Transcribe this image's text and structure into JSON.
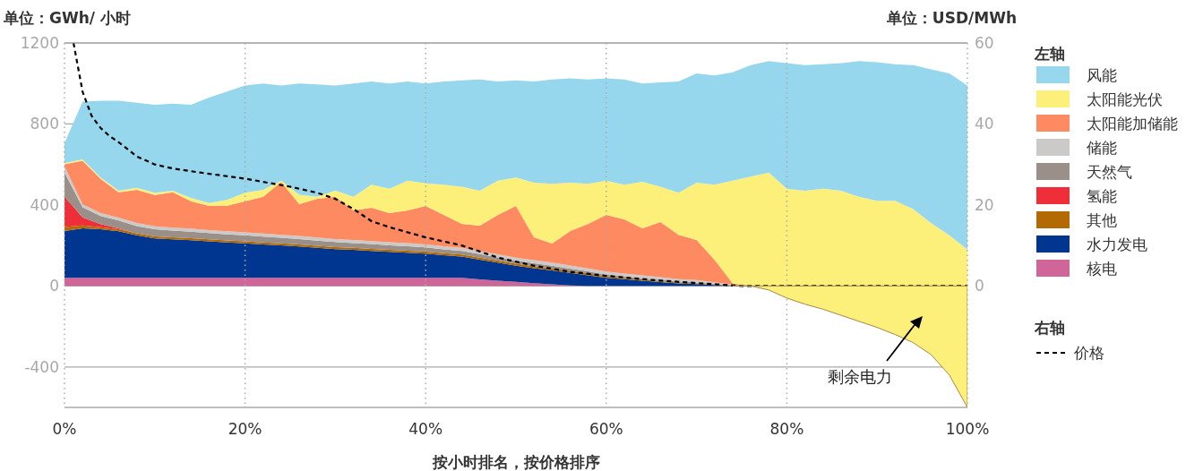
{
  "chart_data": [
    {
      "type": "area",
      "stacked": true,
      "xlabel": "按小时排名，按价格排序",
      "ylabel": "单位：GWh/ 小时",
      "y2label": "单位：USD/MWh",
      "legend_title": "左轴",
      "legend": "right",
      "grid": true,
      "x": [
        0,
        2,
        4,
        6,
        8,
        10,
        12,
        14,
        16,
        18,
        20,
        22,
        24,
        26,
        28,
        30,
        32,
        34,
        36,
        38,
        40,
        42,
        44,
        46,
        48,
        50,
        52,
        54,
        56,
        58,
        60,
        62,
        64,
        66,
        68,
        70,
        72,
        74,
        76,
        78,
        80,
        82,
        84,
        86,
        88,
        90,
        92,
        94,
        96,
        98,
        100
      ],
      "xlim": [
        0,
        100
      ],
      "xticks": [
        {
          "value": 0,
          "label": "0%"
        },
        {
          "value": 20,
          "label": "20%"
        },
        {
          "value": 40,
          "label": "40%"
        },
        {
          "value": 60,
          "label": "60%"
        },
        {
          "value": 80,
          "label": "80%"
        },
        {
          "value": 100,
          "label": "100%"
        }
      ],
      "ylim": [
        -600,
        1200
      ],
      "yticks": [
        -400,
        0,
        400,
        800,
        1200
      ],
      "y2lim": [
        -30,
        60
      ],
      "y2ticks": [
        0,
        20,
        40,
        60
      ],
      "series": [
        {
          "name": "核电",
          "color": "#cf6599",
          "values": [
            40,
            40,
            40,
            40,
            40,
            40,
            40,
            40,
            40,
            40,
            40,
            40,
            40,
            40,
            40,
            40,
            40,
            40,
            40,
            40,
            40,
            40,
            40,
            32,
            26,
            20,
            14,
            8,
            3,
            0,
            0,
            0,
            0,
            0,
            0,
            0,
            0,
            0,
            0,
            0,
            0,
            0,
            0,
            0,
            0,
            0,
            0,
            0,
            0,
            0,
            0
          ]
        },
        {
          "name": "水力发电",
          "color": "#00368f",
          "values": [
            231,
            244,
            240,
            230,
            210,
            195,
            190,
            186,
            180,
            175,
            170,
            165,
            160,
            155,
            148,
            142,
            138,
            133,
            128,
            124,
            120,
            112,
            105,
            98,
            89,
            80,
            74,
            69,
            62,
            52,
            40,
            33,
            26,
            19,
            13,
            9,
            5,
            2,
            0,
            0,
            0,
            0,
            0,
            0,
            0,
            0,
            0,
            0,
            0,
            0,
            0
          ]
        },
        {
          "name": "其他",
          "color": "#b46a02",
          "values": [
            20,
            15,
            10,
            10,
            10,
            10,
            10,
            10,
            10,
            10,
            10,
            10,
            10,
            10,
            10,
            10,
            10,
            10,
            10,
            10,
            10,
            10,
            10,
            10,
            10,
            10,
            10,
            10,
            10,
            10,
            8,
            7,
            6,
            5,
            4,
            3,
            2,
            1,
            0,
            0,
            0,
            0,
            0,
            0,
            0,
            0,
            0,
            0,
            0,
            0,
            0
          ]
        },
        {
          "name": "氢能",
          "color": "#ee2f3a",
          "values": [
            150,
            40,
            15,
            5,
            0,
            0,
            0,
            0,
            0,
            0,
            0,
            0,
            0,
            0,
            0,
            0,
            0,
            0,
            0,
            0,
            0,
            0,
            0,
            0,
            0,
            0,
            0,
            0,
            0,
            0,
            0,
            0,
            0,
            0,
            0,
            0,
            0,
            0,
            0,
            0,
            0,
            0,
            0,
            0,
            0,
            0,
            0,
            0,
            0,
            0,
            0
          ]
        },
        {
          "name": "天然气",
          "color": "#9b9089",
          "values": [
            120,
            50,
            40,
            38,
            36,
            35,
            33,
            32,
            31,
            30,
            30,
            29,
            28,
            27,
            26,
            25,
            24,
            24,
            23,
            22,
            20,
            19,
            18,
            17,
            16,
            15,
            14,
            13,
            11,
            10,
            8,
            7,
            6,
            6,
            5,
            5,
            3,
            1,
            0,
            0,
            0,
            0,
            0,
            0,
            0,
            0,
            0,
            0,
            0,
            0,
            0
          ]
        },
        {
          "name": "储能",
          "color": "#cccac8",
          "values": [
            30,
            15,
            15,
            15,
            15,
            15,
            15,
            15,
            15,
            15,
            15,
            15,
            15,
            15,
            15,
            15,
            15,
            15,
            15,
            15,
            15,
            15,
            15,
            15,
            15,
            15,
            15,
            15,
            15,
            15,
            15,
            14,
            14,
            13,
            12,
            12,
            8,
            3,
            0,
            0,
            0,
            0,
            0,
            0,
            0,
            0,
            0,
            0,
            0,
            0,
            0
          ]
        },
        {
          "name": "太阳能加储能",
          "color": "#fd8a60",
          "values": [
            10,
            214,
            169,
            124,
            164,
            154,
            174,
            135,
            119,
            125,
            153,
            181,
            260,
            157,
            192,
            208,
            146,
            164,
            144,
            162,
            190,
            155,
            119,
            126,
            195,
            255,
            113,
            94,
            170,
            220,
            280,
            268,
            232,
            273,
            219,
            198,
            111,
            6,
            0,
            0,
            0,
            0,
            0,
            0,
            0,
            0,
            0,
            0,
            0,
            0,
            0
          ]
        },
        {
          "name": "太阳能光伏",
          "color": "#fdf07a",
          "values": [
            5,
            7,
            6,
            8,
            10,
            11,
            8,
            17,
            15,
            30,
            42,
            35,
            7,
            46,
            9,
            31,
            67,
            114,
            120,
            147,
            112,
            149,
            183,
            172,
            169,
            140,
            270,
            296,
            239,
            198,
            169,
            171,
            231,
            174,
            207,
            283,
            371,
            507,
            540,
            560,
            480,
            470,
            480,
            470,
            440,
            420,
            420,
            380,
            310,
            250,
            180
          ]
        },
        {
          "name": "风能",
          "color": "#97d7ee",
          "values": [
            100,
            285,
            380,
            445,
            420,
            435,
            430,
            460,
            520,
            535,
            530,
            525,
            470,
            550,
            555,
            519,
            560,
            510,
            520,
            490,
            493,
            510,
            525,
            550,
            490,
            480,
            500,
            515,
            515,
            515,
            505,
            520,
            485,
            515,
            550,
            540,
            540,
            535,
            550,
            550,
            620,
            620,
            615,
            630,
            670,
            685,
            675,
            710,
            760,
            800,
            810
          ]
        },
        {
          "name": "价格",
          "type": "line",
          "axis": "y2",
          "color": "#000000",
          "line_style": "dashed",
          "x": [
            1,
            2,
            3,
            4,
            5,
            6,
            8,
            10,
            12,
            15,
            20,
            25,
            28,
            30,
            32,
            34,
            36,
            40,
            44,
            48,
            52,
            56,
            60,
            65,
            70,
            75,
            100
          ],
          "values": [
            60,
            48,
            42,
            39,
            37,
            35.5,
            32,
            30,
            29,
            28,
            26.5,
            24.5,
            23,
            21.5,
            19,
            16,
            14.5,
            12,
            10,
            7,
            5,
            3.5,
            2.5,
            1.5,
            0.7,
            0,
            0
          ]
        }
      ],
      "annotations": [
        "右轴"
      ]
    },
    {
      "type": "area",
      "xlim": [
        0,
        100
      ],
      "ylim": [
        -600,
        1200
      ],
      "x": [
        74,
        76,
        78,
        80,
        82,
        84,
        86,
        88,
        90,
        92,
        94,
        96,
        98,
        100
      ],
      "series": [
        {
          "color": "#fdf07a",
          "values": [
            0,
            0,
            -20,
            -60,
            -90,
            -115,
            -145,
            -175,
            -205,
            -240,
            -280,
            -340,
            -440,
            -600
          ]
        }
      ],
      "annotations": [
        "剩余电力"
      ]
    }
  ]
}
